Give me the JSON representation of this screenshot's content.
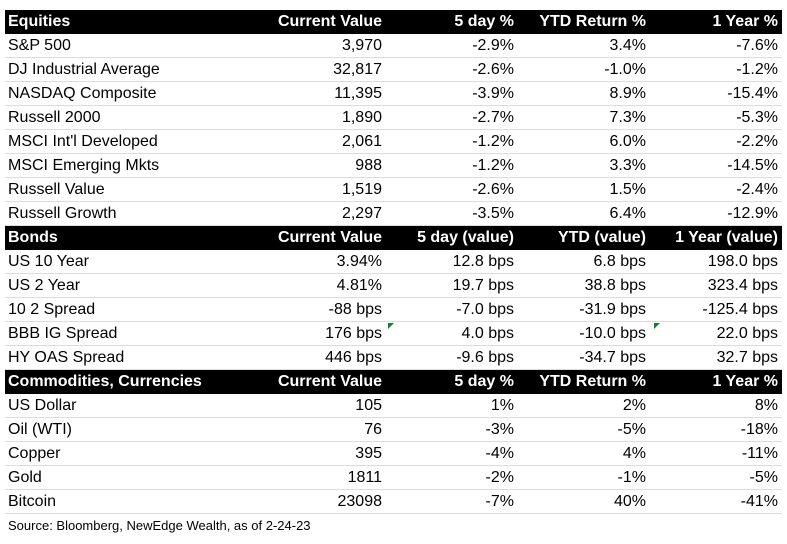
{
  "sections": [
    {
      "headers": [
        "Equities",
        "Current Value",
        "5 day %",
        "YTD Return %",
        "1 Year %"
      ],
      "rows": [
        [
          "S&P 500",
          "3,970",
          "-2.9%",
          "3.4%",
          "-7.6%"
        ],
        [
          "DJ Industrial Average",
          "32,817",
          "-2.6%",
          "-1.0%",
          "-1.2%"
        ],
        [
          "NASDAQ Composite",
          "11,395",
          "-3.9%",
          "8.9%",
          "-15.4%"
        ],
        [
          "Russell 2000",
          "1,890",
          "-2.7%",
          "7.3%",
          "-5.3%"
        ],
        [
          "MSCI Int'l Developed",
          "2,061",
          "-1.2%",
          "6.0%",
          "-2.2%"
        ],
        [
          "MSCI Emerging Mkts",
          "988",
          "-1.2%",
          "3.3%",
          "-14.5%"
        ],
        [
          "Russell Value",
          "1,519",
          "-2.6%",
          "1.5%",
          "-2.4%"
        ],
        [
          "Russell Growth",
          "2,297",
          "-3.5%",
          "6.4%",
          "-12.9%"
        ]
      ]
    },
    {
      "headers": [
        "Bonds",
        "Current Value",
        "5 day (value)",
        "YTD (value)",
        "1 Year (value)"
      ],
      "rows": [
        [
          "US 10 Year",
          "3.94%",
          "12.8 bps",
          "6.8 bps",
          "198.0 bps"
        ],
        [
          "US 2 Year",
          "4.81%",
          "19.7 bps",
          "38.8 bps",
          "323.4 bps"
        ],
        [
          "10 2 Spread",
          "-88 bps",
          "-7.0 bps",
          "-31.9 bps",
          "-125.4 bps"
        ],
        [
          "BBB IG Spread",
          "176 bps",
          "4.0 bps",
          "-10.0 bps",
          "22.0 bps"
        ],
        [
          "HY OAS Spread",
          "446 bps",
          "-9.6 bps",
          "-34.7 bps",
          "32.7 bps"
        ]
      ]
    },
    {
      "headers": [
        "Commodities, Currencies",
        "Current Value",
        "5 day %",
        "YTD Return %",
        "1 Year %"
      ],
      "rows": [
        [
          "US Dollar",
          "105",
          "1%",
          "2%",
          "8%"
        ],
        [
          "Oil (WTI)",
          "76",
          "-3%",
          "-5%",
          "-18%"
        ],
        [
          "Copper",
          "395",
          "-4%",
          "4%",
          "-11%"
        ],
        [
          "Gold",
          "1811",
          "-2%",
          "-1%",
          "-5%"
        ],
        [
          "Bitcoin",
          "23098",
          "-7%",
          "40%",
          "-41%"
        ]
      ]
    }
  ],
  "comment_marker_color": "#1e7b34",
  "source": "Source: Bloomberg, NewEdge Wealth, as of 2-24-23"
}
